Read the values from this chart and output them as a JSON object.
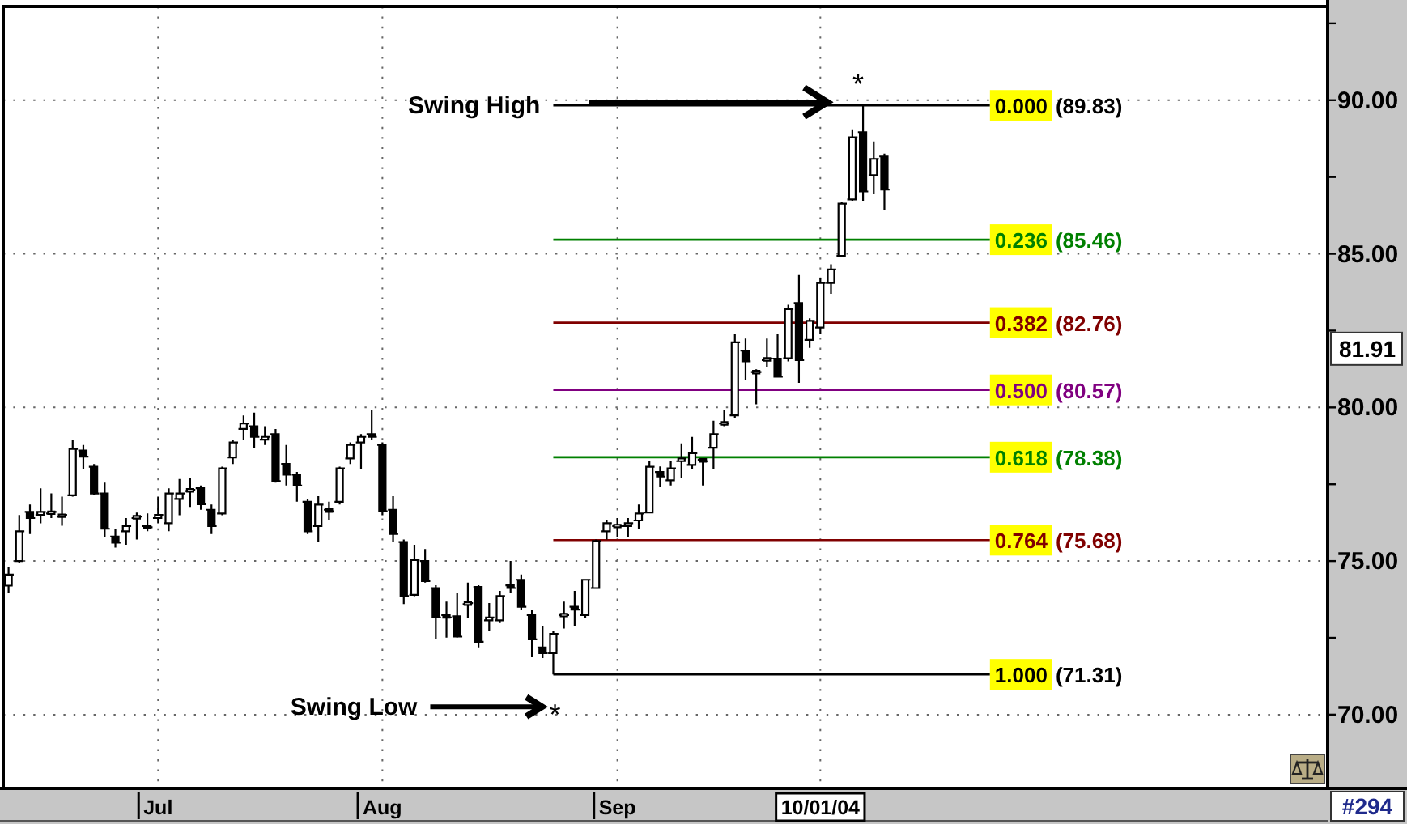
{
  "chart_data": {
    "type": "candlestick",
    "color": "#000000",
    "categories": [
      null,
      null,
      null,
      null,
      null,
      null,
      null,
      null,
      null,
      null,
      null,
      null,
      null,
      null,
      "Jul",
      null,
      null,
      null,
      null,
      null,
      null,
      null,
      null,
      null,
      null,
      null,
      null,
      null,
      null,
      null,
      null,
      null,
      null,
      null,
      null,
      "Aug",
      null,
      null,
      null,
      null,
      null,
      null,
      null,
      null,
      null,
      null,
      null,
      null,
      null,
      null,
      null,
      null,
      null,
      null,
      null,
      null,
      null,
      "Sep",
      null,
      null,
      null,
      null,
      null,
      null,
      null,
      null,
      null,
      null,
      null,
      null,
      null,
      null,
      null,
      null,
      null,
      null,
      "10/01/04",
      null,
      null,
      null,
      null,
      null,
      null,
      null,
      null,
      null,
      null,
      null,
      null,
      null,
      null,
      null,
      null,
      null,
      null,
      null,
      null,
      null,
      null,
      null,
      null,
      null,
      null,
      null,
      null,
      null,
      null,
      null,
      null,
      null,
      null,
      null,
      null,
      null,
      null,
      null,
      null,
      null,
      null,
      null,
      null,
      null,
      null,
      null
    ],
    "ohlc": [
      [
        74.2,
        74.79,
        73.95,
        74.56
      ],
      [
        75.0,
        76.5,
        74.95,
        75.97
      ],
      [
        76.6,
        76.84,
        75.88,
        76.4
      ],
      [
        76.5,
        77.37,
        76.23,
        76.6
      ],
      [
        76.55,
        77.2,
        76.4,
        76.6
      ],
      [
        76.45,
        77.1,
        76.15,
        76.5
      ],
      [
        77.14,
        78.95,
        77.1,
        78.65
      ],
      [
        78.6,
        78.78,
        77.98,
        78.4
      ],
      [
        78.07,
        78.16,
        77.14,
        77.2
      ],
      [
        77.2,
        77.55,
        75.79,
        76.05
      ],
      [
        75.8,
        76.05,
        75.44,
        75.6
      ],
      [
        75.97,
        76.4,
        75.53,
        76.14
      ],
      [
        76.4,
        76.58,
        75.7,
        76.45
      ],
      [
        76.14,
        76.55,
        75.97,
        76.1
      ],
      [
        76.4,
        77.1,
        76.23,
        76.5
      ],
      [
        76.23,
        77.37,
        75.97,
        77.2
      ],
      [
        77.02,
        77.67,
        76.49,
        77.2
      ],
      [
        77.28,
        77.72,
        76.76,
        77.32
      ],
      [
        77.37,
        77.46,
        76.67,
        76.85
      ],
      [
        76.67,
        76.84,
        75.88,
        76.14
      ],
      [
        76.55,
        78.07,
        76.49,
        78.02
      ],
      [
        78.37,
        78.95,
        78.16,
        78.86
      ],
      [
        79.3,
        79.74,
        78.95,
        79.48
      ],
      [
        79.39,
        79.83,
        78.69,
        79.04
      ],
      [
        78.95,
        79.39,
        78.78,
        79.04
      ],
      [
        79.13,
        79.3,
        77.55,
        77.6
      ],
      [
        78.16,
        78.78,
        77.46,
        77.81
      ],
      [
        77.81,
        77.9,
        76.93,
        77.46
      ],
      [
        76.93,
        77.02,
        75.88,
        75.97
      ],
      [
        76.14,
        77.11,
        75.62,
        76.84
      ],
      [
        76.67,
        76.93,
        76.32,
        76.62
      ],
      [
        76.93,
        78.07,
        76.84,
        78.02
      ],
      [
        78.34,
        78.86,
        78.16,
        78.78
      ],
      [
        78.86,
        79.13,
        77.98,
        79.04
      ],
      [
        79.13,
        79.92,
        78.95,
        79.04
      ],
      [
        78.78,
        78.86,
        76.49,
        76.62
      ],
      [
        76.67,
        77.11,
        75.62,
        75.88
      ],
      [
        75.62,
        75.7,
        73.6,
        73.86
      ],
      [
        73.9,
        75.53,
        73.86,
        75.03
      ],
      [
        75.0,
        75.39,
        74.3,
        74.35
      ],
      [
        74.12,
        74.21,
        72.45,
        73.16
      ],
      [
        73.24,
        73.68,
        72.51,
        73.16
      ],
      [
        73.2,
        73.95,
        72.51,
        72.54
      ],
      [
        73.6,
        74.3,
        73.16,
        73.63
      ],
      [
        74.16,
        74.21,
        72.19,
        72.37
      ],
      [
        73.07,
        73.63,
        72.72,
        73.16
      ],
      [
        73.07,
        74.03,
        72.98,
        73.86
      ],
      [
        74.21,
        75.0,
        73.95,
        74.12
      ],
      [
        74.39,
        74.56,
        73.42,
        73.51
      ],
      [
        73.24,
        73.42,
        71.87,
        72.45
      ],
      [
        72.19,
        72.89,
        71.84,
        72.0
      ],
      [
        72.0,
        72.72,
        71.31,
        72.63
      ],
      [
        73.24,
        73.68,
        72.8,
        73.24
      ],
      [
        73.51,
        74.03,
        72.89,
        73.42
      ],
      [
        73.24,
        74.39,
        73.16,
        74.39
      ],
      [
        74.12,
        75.7,
        74.12,
        75.65
      ],
      [
        75.97,
        76.32,
        75.7,
        76.23
      ],
      [
        76.14,
        76.4,
        75.79,
        76.14
      ],
      [
        76.14,
        76.4,
        75.79,
        76.23
      ],
      [
        76.32,
        76.84,
        76.05,
        76.55
      ],
      [
        76.58,
        78.25,
        76.58,
        78.07
      ],
      [
        77.9,
        78.08,
        77.4,
        77.75
      ],
      [
        77.63,
        78.25,
        77.46,
        78.02
      ],
      [
        78.25,
        78.83,
        77.72,
        78.34
      ],
      [
        78.13,
        79.04,
        77.99,
        78.51
      ],
      [
        78.3,
        78.34,
        77.46,
        78.25
      ],
      [
        78.69,
        79.57,
        77.99,
        79.13
      ],
      [
        79.48,
        79.92,
        79.39,
        79.48
      ],
      [
        79.74,
        82.38,
        79.66,
        82.12
      ],
      [
        81.85,
        82.24,
        80.89,
        81.5
      ],
      [
        81.15,
        81.24,
        80.1,
        81.15
      ],
      [
        81.54,
        82.24,
        81.32,
        81.59
      ],
      [
        81.59,
        82.38,
        80.97,
        81.0
      ],
      [
        81.6,
        83.34,
        81.5,
        83.2
      ],
      [
        83.4,
        84.31,
        80.8,
        81.54
      ],
      [
        82.2,
        82.9,
        81.94,
        82.82
      ],
      [
        82.6,
        84.22,
        82.38,
        84.05
      ],
      [
        84.05,
        84.66,
        83.7,
        84.49
      ],
      [
        84.93,
        86.68,
        84.93,
        86.63
      ],
      [
        86.77,
        89.05,
        86.73,
        88.79
      ],
      [
        88.96,
        89.83,
        86.73,
        87.03
      ],
      [
        87.56,
        88.66,
        86.94,
        88.09
      ],
      [
        88.17,
        88.26,
        86.42,
        87.09
      ],
      null,
      null,
      null,
      null,
      null,
      null,
      null,
      null,
      null,
      null,
      null,
      null,
      null,
      null,
      null,
      null,
      null,
      null,
      null,
      null,
      null,
      null,
      null,
      null,
      null,
      null,
      null,
      null,
      null,
      null,
      null,
      null,
      null,
      null,
      null,
      null,
      null,
      null,
      null,
      null,
      null
    ],
    "ylim": [
      67.6,
      93.05
    ],
    "yticks": [
      {
        "value": 92.5,
        "label": null
      },
      {
        "value": 90,
        "label": "90.00"
      },
      {
        "value": 87.5,
        "label": null
      },
      {
        "value": 85,
        "label": "85.00"
      },
      {
        "value": 82.5,
        "label": null
      },
      {
        "value": 80,
        "label": "80.00"
      },
      {
        "value": 77.5,
        "label": null
      },
      {
        "value": 75,
        "label": "75.00"
      },
      {
        "value": 72.5,
        "label": null
      },
      {
        "value": 70,
        "label": "70.00"
      }
    ],
    "grid": true,
    "ref_lines": [
      {
        "axis": "y",
        "value": 89.83,
        "label": "0.000 (89.83)",
        "color": "#000000"
      },
      {
        "axis": "y",
        "value": 85.46,
        "label": "0.236 (85.46)",
        "color": "#008000"
      },
      {
        "axis": "y",
        "value": 82.76,
        "label": "0.382 (82.76)",
        "color": "#800000"
      },
      {
        "axis": "y",
        "value": 80.57,
        "label": "0.500 (80.57)",
        "color": "#800080"
      },
      {
        "axis": "y",
        "value": 78.38,
        "label": "0.618 (78.38)",
        "color": "#008000"
      },
      {
        "axis": "y",
        "value": 75.68,
        "label": "0.764 (75.68)",
        "color": "#800000"
      },
      {
        "axis": "y",
        "value": 71.31,
        "label": "1.000 (71.31)",
        "color": "#000000"
      }
    ],
    "annotations": [
      "Swing High",
      {
        "text": "*",
        "y": 89.83
      },
      "Swing Low",
      {
        "text": "*",
        "y": 71.31
      },
      {
        "text": "81.91",
        "y": 81.91
      },
      "#294"
    ]
  }
}
